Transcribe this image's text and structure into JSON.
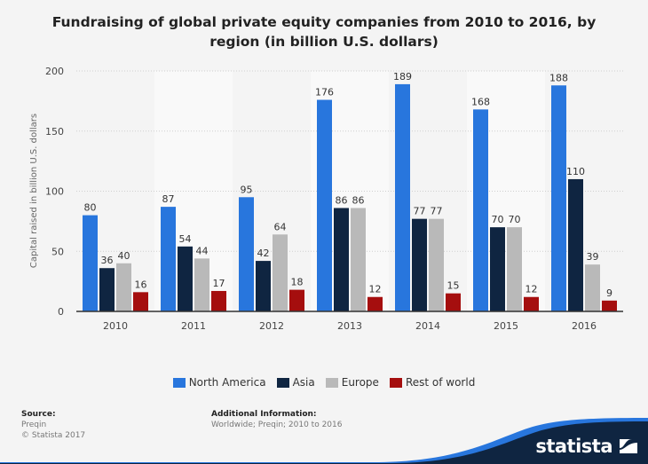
{
  "chart_data": {
    "type": "bar",
    "title": "Fundraising of global private equity companies from 2010 to 2016, by region (in billion U.S. dollars)",
    "title_lines": [
      "Fundraising of global private equity companies from 2010 to 2016, by",
      "region (in billion U.S. dollars)"
    ],
    "xlabel": "",
    "ylabel": "Capital raised in billion U.S. dollars",
    "ylim": [
      0,
      200
    ],
    "yticks": [
      0,
      50,
      100,
      150,
      200
    ],
    "grid": true,
    "legend_position": "bottom-center",
    "categories": [
      "2010",
      "2011",
      "2012",
      "2013",
      "2014",
      "2015",
      "2016"
    ],
    "series": [
      {
        "name": "North America",
        "color": "#2876dd",
        "values": [
          80,
          87,
          95,
          176,
          189,
          168,
          188
        ]
      },
      {
        "name": "Asia",
        "color": "#0f2541",
        "values": [
          36,
          54,
          42,
          86,
          77,
          70,
          110
        ]
      },
      {
        "name": "Europe",
        "color": "#b9b9b9",
        "values": [
          40,
          44,
          64,
          86,
          77,
          70,
          39
        ]
      },
      {
        "name": "Rest of world",
        "color": "#a50e0e",
        "values": [
          16,
          17,
          18,
          12,
          15,
          12,
          9
        ]
      }
    ]
  },
  "footer": {
    "source_heading": "Source:",
    "source_lines": [
      "Preqin",
      "© Statista 2017"
    ],
    "additional_heading": "Additional Information:",
    "additional_text": "Worldwide; Preqin; 2010 to 2016",
    "brand": "statista"
  },
  "colors": {
    "background": "#f4f4f4",
    "band": "#f9f9f9",
    "brand_dark": "#0f2541",
    "brand_blue": "#2876dd"
  }
}
